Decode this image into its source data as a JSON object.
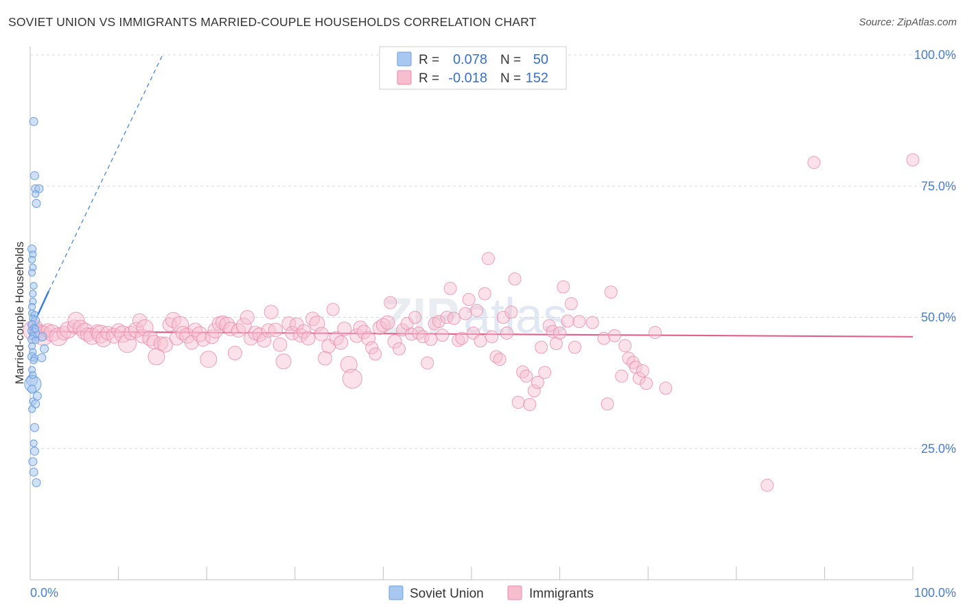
{
  "title": "SOVIET UNION VS IMMIGRANTS MARRIED-COUPLE HOUSEHOLDS CORRELATION CHART",
  "source": "Source: ZipAtlas.com",
  "watermark": {
    "zip": "ZIP",
    "atlas": "atlas"
  },
  "colors": {
    "soviet_fill": "#a9c8f0",
    "soviet_stroke": "#6a9ee0",
    "soviet_line": "#3a7bd5",
    "immigrants_fill": "#f7bed0",
    "immigrants_stroke": "#e88aa8",
    "immigrants_line": "#e0608a",
    "accent_text": "#4a7cc9",
    "grid": "#d9d9d9"
  },
  "legend": {
    "rows": [
      {
        "r_label": "R =",
        "r_value": "0.078",
        "n_label": "N =",
        "n_value": "50"
      },
      {
        "r_label": "R =",
        "r_value": "-0.018",
        "n_label": "N =",
        "n_value": "152"
      }
    ]
  },
  "chart_data": {
    "type": "scatter",
    "title": "SOVIET UNION VS IMMIGRANTS MARRIED-COUPLE HOUSEHOLDS CORRELATION CHART",
    "xlabel": "",
    "ylabel": "Married-couple Households",
    "xlim": [
      0,
      100
    ],
    "ylim": [
      0,
      105
    ],
    "x_tick_labels": [
      "0.0%",
      "100.0%"
    ],
    "y_ticks": [
      25,
      50,
      75,
      100
    ],
    "y_tick_labels": [
      "25.0%",
      "50.0%",
      "75.0%",
      "100.0%"
    ],
    "grid": "horizontal dashed",
    "legend_position": "top-center",
    "series": [
      {
        "name": "Soviet Union",
        "r": 0.078,
        "n": 50,
        "trend": {
          "x": [
            0,
            2.1
          ],
          "y": [
            47.3,
            55.0
          ]
        },
        "trend_extended": {
          "x": [
            2.1,
            15.0
          ],
          "y": [
            55.0,
            100.0
          ]
        },
        "points": [
          [
            0.4,
            87.3,
            6
          ],
          [
            0.5,
            77.0,
            6
          ],
          [
            0.6,
            74.5,
            6
          ],
          [
            1.0,
            74.5,
            6
          ],
          [
            0.6,
            73.5,
            5
          ],
          [
            0.7,
            71.7,
            6
          ],
          [
            0.2,
            63.0,
            6
          ],
          [
            0.3,
            62.0,
            5
          ],
          [
            0.2,
            61.0,
            5
          ],
          [
            0.3,
            59.5,
            5
          ],
          [
            0.2,
            58.5,
            5
          ],
          [
            0.4,
            56.0,
            5
          ],
          [
            0.3,
            54.5,
            5
          ],
          [
            0.3,
            53.0,
            5
          ],
          [
            0.2,
            52.0,
            5
          ],
          [
            0.2,
            50.8,
            5
          ],
          [
            0.5,
            50.5,
            5
          ],
          [
            0.3,
            49.8,
            5
          ],
          [
            0.6,
            49.4,
            6
          ],
          [
            0.2,
            48.6,
            6
          ],
          [
            0.4,
            48.0,
            5
          ],
          [
            0.2,
            47.4,
            6
          ],
          [
            0.5,
            47.0,
            7
          ],
          [
            0.3,
            46.4,
            5
          ],
          [
            0.2,
            45.8,
            6
          ],
          [
            1.4,
            46.3,
            6
          ],
          [
            0.6,
            45.6,
            5
          ],
          [
            0.2,
            44.5,
            5
          ],
          [
            1.6,
            44.0,
            6
          ],
          [
            0.3,
            43.4,
            5
          ],
          [
            0.2,
            42.5,
            6
          ],
          [
            0.5,
            42.2,
            5
          ],
          [
            1.3,
            42.3,
            6
          ],
          [
            0.4,
            41.8,
            5
          ],
          [
            0.2,
            38.0,
            8
          ],
          [
            0.3,
            37.3,
            12
          ],
          [
            0.2,
            36.3,
            6
          ],
          [
            0.8,
            35.0,
            6
          ],
          [
            0.3,
            34.0,
            5
          ],
          [
            0.6,
            33.5,
            6
          ],
          [
            0.5,
            29.0,
            6
          ],
          [
            0.4,
            26.0,
            5
          ],
          [
            0.5,
            24.5,
            6
          ],
          [
            0.3,
            22.5,
            6
          ],
          [
            0.4,
            20.5,
            6
          ],
          [
            0.7,
            18.5,
            6
          ],
          [
            0.2,
            40.0,
            5
          ],
          [
            0.3,
            39.0,
            5
          ],
          [
            0.6,
            47.8,
            5
          ],
          [
            0.2,
            32.5,
            5
          ]
        ]
      },
      {
        "name": "Immigrants",
        "r": -0.018,
        "n": 152,
        "trend": {
          "x": [
            0,
            100
          ],
          "y": [
            47.3,
            46.3
          ]
        },
        "points": [
          [
            0.3,
            47.5,
            14
          ],
          [
            0.6,
            48.2,
            10
          ],
          [
            1.2,
            47.0,
            12
          ],
          [
            1.5,
            46.5,
            14
          ],
          [
            2.0,
            47.5,
            10
          ],
          [
            2.5,
            47.0,
            12
          ],
          [
            3.2,
            46.3,
            13
          ],
          [
            3.8,
            47.0,
            10
          ],
          [
            4.3,
            47.6,
            12
          ],
          [
            5.0,
            48.2,
            10
          ],
          [
            5.2,
            49.4,
            12
          ],
          [
            5.7,
            48.0,
            11
          ],
          [
            6.2,
            47.3,
            12
          ],
          [
            6.5,
            46.7,
            10
          ],
          [
            7.0,
            46.4,
            12
          ],
          [
            7.6,
            47.3,
            10
          ],
          [
            8.0,
            46.8,
            13
          ],
          [
            8.3,
            45.8,
            11
          ],
          [
            8.8,
            47.0,
            10
          ],
          [
            9.5,
            46.5,
            11
          ],
          [
            10.0,
            47.5,
            10
          ],
          [
            10.5,
            46.8,
            12
          ],
          [
            11.0,
            45.0,
            13
          ],
          [
            11.4,
            47.0,
            10
          ],
          [
            12.0,
            47.6,
            11
          ],
          [
            12.4,
            49.4,
            10
          ],
          [
            12.7,
            46.4,
            10
          ],
          [
            13.0,
            48.0,
            12
          ],
          [
            13.6,
            46.0,
            11
          ],
          [
            14.0,
            45.3,
            10
          ],
          [
            14.3,
            42.5,
            12
          ],
          [
            14.8,
            45.0,
            10
          ],
          [
            15.3,
            44.8,
            11
          ],
          [
            15.8,
            48.6,
            10
          ],
          [
            16.2,
            49.5,
            11
          ],
          [
            16.6,
            46.0,
            10
          ],
          [
            17.0,
            48.6,
            12
          ],
          [
            17.3,
            47.0,
            10
          ],
          [
            17.8,
            46.5,
            11
          ],
          [
            18.3,
            45.2,
            10
          ],
          [
            18.7,
            47.6,
            10
          ],
          [
            19.2,
            46.8,
            11
          ],
          [
            19.6,
            45.8,
            10
          ],
          [
            20.2,
            42.0,
            12
          ],
          [
            20.6,
            46.3,
            10
          ],
          [
            21.0,
            47.5,
            11
          ],
          [
            21.4,
            48.8,
            10
          ],
          [
            21.8,
            49.0,
            10
          ],
          [
            22.3,
            48.6,
            11
          ],
          [
            22.7,
            47.8,
            10
          ],
          [
            23.2,
            43.2,
            10
          ],
          [
            23.6,
            47.5,
            10
          ],
          [
            24.2,
            48.4,
            11
          ],
          [
            24.6,
            50.0,
            10
          ],
          [
            25.0,
            46.0,
            10
          ],
          [
            25.5,
            47.0,
            10
          ],
          [
            26.0,
            46.7,
            10
          ],
          [
            26.5,
            45.6,
            10
          ],
          [
            27.0,
            47.5,
            10
          ],
          [
            27.3,
            51.0,
            10
          ],
          [
            27.8,
            47.6,
            10
          ],
          [
            28.3,
            44.8,
            10
          ],
          [
            28.7,
            41.6,
            11
          ],
          [
            29.3,
            48.8,
            10
          ],
          [
            29.7,
            47.0,
            10
          ],
          [
            30.2,
            48.6,
            10
          ],
          [
            30.6,
            46.6,
            10
          ],
          [
            31.0,
            47.3,
            10
          ],
          [
            31.5,
            46.0,
            10
          ],
          [
            32.0,
            49.7,
            10
          ],
          [
            32.5,
            48.8,
            11
          ],
          [
            33.0,
            46.8,
            10
          ],
          [
            33.4,
            42.2,
            10
          ],
          [
            33.8,
            44.5,
            10
          ],
          [
            34.3,
            51.5,
            9
          ],
          [
            34.7,
            46.0,
            10
          ],
          [
            35.2,
            45.2,
            10
          ],
          [
            35.6,
            47.8,
            10
          ],
          [
            36.1,
            41.0,
            12
          ],
          [
            36.5,
            38.3,
            14
          ],
          [
            37.0,
            46.5,
            10
          ],
          [
            37.4,
            48.0,
            10
          ],
          [
            37.8,
            47.2,
            10
          ],
          [
            38.3,
            46.0,
            10
          ],
          [
            38.7,
            44.2,
            9
          ],
          [
            39.1,
            43.0,
            9
          ],
          [
            39.6,
            48.0,
            10
          ],
          [
            40.0,
            48.5,
            10
          ],
          [
            40.5,
            49.0,
            10
          ],
          [
            40.8,
            52.8,
            9
          ],
          [
            41.3,
            45.4,
            10
          ],
          [
            41.8,
            44.0,
            9
          ],
          [
            42.2,
            47.6,
            9
          ],
          [
            42.7,
            48.8,
            9
          ],
          [
            43.2,
            46.8,
            9
          ],
          [
            43.6,
            50.0,
            9
          ],
          [
            44.0,
            47.0,
            9
          ],
          [
            44.5,
            46.3,
            9
          ],
          [
            45.0,
            41.3,
            9
          ],
          [
            45.4,
            45.8,
            9
          ],
          [
            45.8,
            48.8,
            9
          ],
          [
            46.3,
            49.2,
            9
          ],
          [
            46.7,
            46.6,
            9
          ],
          [
            47.2,
            50.0,
            9
          ],
          [
            47.6,
            55.5,
            9
          ],
          [
            48.0,
            49.8,
            9
          ],
          [
            48.5,
            45.6,
            9
          ],
          [
            48.9,
            46.0,
            9
          ],
          [
            49.3,
            50.7,
            9
          ],
          [
            49.7,
            53.4,
            9
          ],
          [
            50.2,
            47.0,
            9
          ],
          [
            50.6,
            51.3,
            9
          ],
          [
            51.0,
            45.5,
            9
          ],
          [
            51.5,
            54.5,
            9
          ],
          [
            51.9,
            61.2,
            9
          ],
          [
            52.3,
            46.3,
            9
          ],
          [
            52.8,
            42.5,
            9
          ],
          [
            53.2,
            42.0,
            9
          ],
          [
            53.6,
            50.0,
            9
          ],
          [
            54.0,
            47.0,
            9
          ],
          [
            54.5,
            51.0,
            9
          ],
          [
            54.9,
            57.3,
            9
          ],
          [
            55.3,
            33.8,
            9
          ],
          [
            55.8,
            39.6,
            9
          ],
          [
            56.2,
            38.8,
            9
          ],
          [
            56.6,
            33.4,
            9
          ],
          [
            57.1,
            36.0,
            9
          ],
          [
            57.5,
            37.6,
            9
          ],
          [
            57.9,
            44.3,
            9
          ],
          [
            58.3,
            39.5,
            9
          ],
          [
            58.8,
            48.4,
            9
          ],
          [
            59.2,
            47.3,
            9
          ],
          [
            59.6,
            45.0,
            9
          ],
          [
            60.0,
            47.0,
            9
          ],
          [
            60.4,
            55.8,
            9
          ],
          [
            60.9,
            49.3,
            9
          ],
          [
            61.3,
            52.6,
            9
          ],
          [
            61.7,
            44.3,
            9
          ],
          [
            62.2,
            49.2,
            9
          ],
          [
            63.7,
            49.0,
            9
          ],
          [
            65.0,
            46.0,
            9
          ],
          [
            65.4,
            33.5,
            9
          ],
          [
            65.8,
            54.8,
            9
          ],
          [
            66.2,
            46.5,
            9
          ],
          [
            67.0,
            38.8,
            9
          ],
          [
            67.4,
            44.6,
            9
          ],
          [
            67.8,
            42.2,
            9
          ],
          [
            68.3,
            41.4,
            9
          ],
          [
            68.6,
            40.5,
            9
          ],
          [
            69.0,
            38.4,
            9
          ],
          [
            69.4,
            39.8,
            9
          ],
          [
            69.8,
            37.4,
            9
          ],
          [
            70.8,
            47.1,
            9
          ],
          [
            72.0,
            36.5,
            9
          ],
          [
            83.5,
            18.0,
            9
          ],
          [
            88.8,
            79.5,
            9
          ],
          [
            100.0,
            80.0,
            9
          ]
        ]
      }
    ],
    "legend_entries": [
      "Soviet Union",
      "Immigrants"
    ]
  }
}
